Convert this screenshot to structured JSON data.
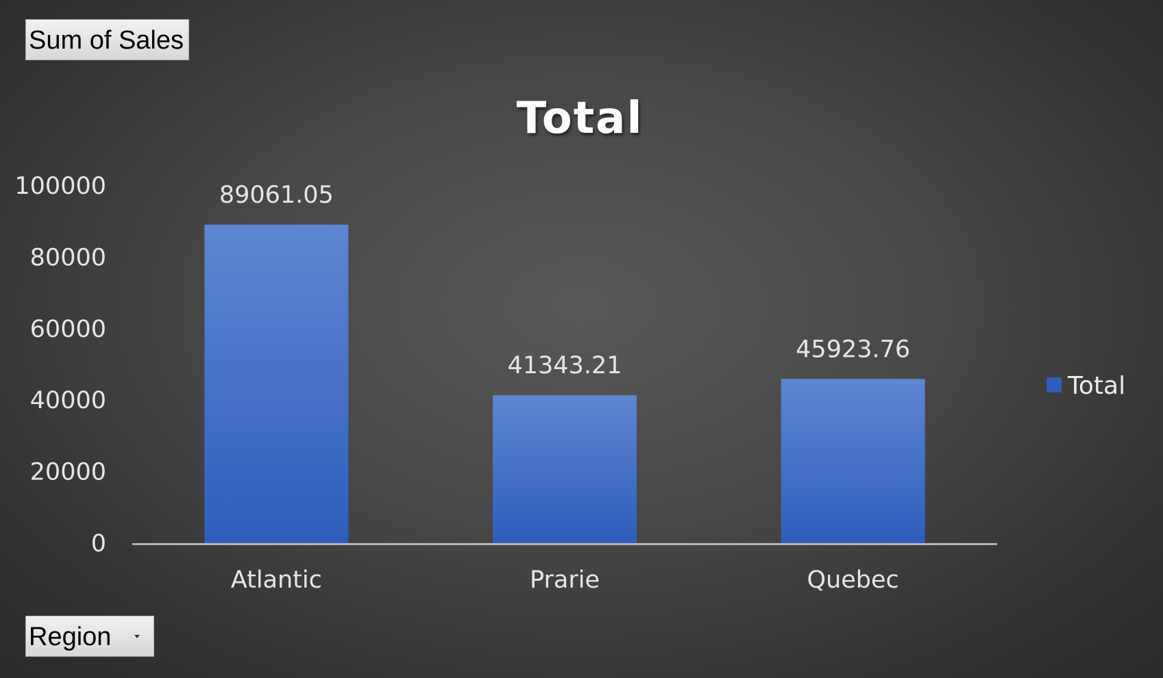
{
  "pivot": {
    "values_field": "Sum of Sales",
    "axis_field": "Region"
  },
  "colors": {
    "bar_top": "#5e86d2",
    "bar_bottom": "#2e5dbd",
    "axis_line": "#b5b5b5"
  },
  "chart_data": {
    "type": "bar",
    "title": "Total",
    "xlabel": "",
    "ylabel": "",
    "categories": [
      "Atlantic",
      "Prarie",
      "Quebec"
    ],
    "series": [
      {
        "name": "Total",
        "values": [
          89061.05,
          41343.21,
          45923.76
        ]
      }
    ],
    "data_labels": [
      "89061.05",
      "41343.21",
      "45923.76"
    ],
    "ylim": [
      0,
      100000
    ],
    "yticks": [
      0,
      20000,
      40000,
      60000,
      80000,
      100000
    ],
    "grid": false,
    "legend_position": "right"
  }
}
